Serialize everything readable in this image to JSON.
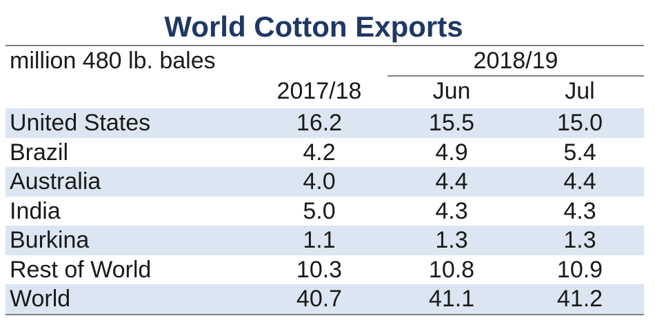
{
  "title": "World Cotton Exports",
  "chart_data": {
    "type": "table",
    "unit_label": "million 480 lb. bales",
    "column_group": "2018/19",
    "columns": [
      "2017/18",
      "Jun",
      "Jul"
    ],
    "rows": [
      {
        "name": "United States",
        "values": [
          "16.2",
          "15.5",
          "15.0"
        ]
      },
      {
        "name": "Brazil",
        "values": [
          "4.2",
          "4.9",
          "5.4"
        ]
      },
      {
        "name": "Australia",
        "values": [
          "4.0",
          "4.4",
          "4.4"
        ]
      },
      {
        "name": "India",
        "values": [
          "5.0",
          "4.3",
          "4.3"
        ]
      },
      {
        "name": "Burkina",
        "values": [
          "1.1",
          "1.3",
          "1.3"
        ]
      },
      {
        "name": "Rest of World",
        "values": [
          "10.3",
          "10.8",
          "10.9"
        ]
      },
      {
        "name": "World",
        "values": [
          "40.7",
          "41.1",
          "41.2"
        ]
      }
    ]
  },
  "colors": {
    "title": "#1f3864",
    "row_shade": "#dce6f2",
    "rule": "#7f7f7f"
  }
}
